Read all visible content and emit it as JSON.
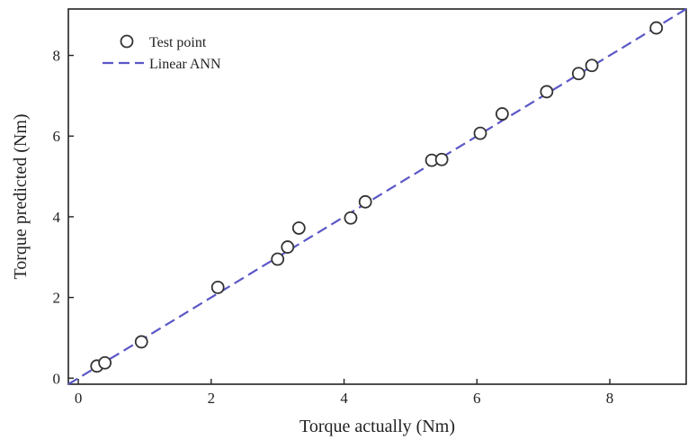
{
  "chart_data": {
    "type": "scatter",
    "title": "",
    "xlabel": "Torque actually (Nm)",
    "ylabel": "Torque predicted (Nm)",
    "xlim": [
      -0.15,
      9.15
    ],
    "ylim": [
      -0.15,
      9.15
    ],
    "xticks": [
      0,
      2,
      4,
      6,
      8
    ],
    "yticks": [
      0,
      2,
      4,
      6,
      8
    ],
    "grid": false,
    "legend_position": "top-left",
    "series": [
      {
        "name": "Test point",
        "kind": "scatter",
        "marker": "open-circle",
        "color": "#333333",
        "x": [
          0.28,
          0.4,
          0.95,
          2.1,
          3.0,
          3.15,
          3.32,
          4.1,
          4.32,
          5.32,
          5.47,
          6.05,
          6.38,
          7.05,
          7.53,
          7.73,
          8.7
        ],
        "y": [
          0.3,
          0.38,
          0.9,
          2.25,
          2.95,
          3.25,
          3.72,
          3.97,
          4.37,
          5.4,
          5.42,
          6.07,
          6.55,
          7.1,
          7.55,
          7.75,
          8.68
        ]
      },
      {
        "name": "Linear ANN",
        "kind": "line",
        "style": "dashed",
        "color": "#5b57c7",
        "x": [
          -0.15,
          9.15
        ],
        "y": [
          -0.15,
          9.15
        ]
      }
    ]
  }
}
